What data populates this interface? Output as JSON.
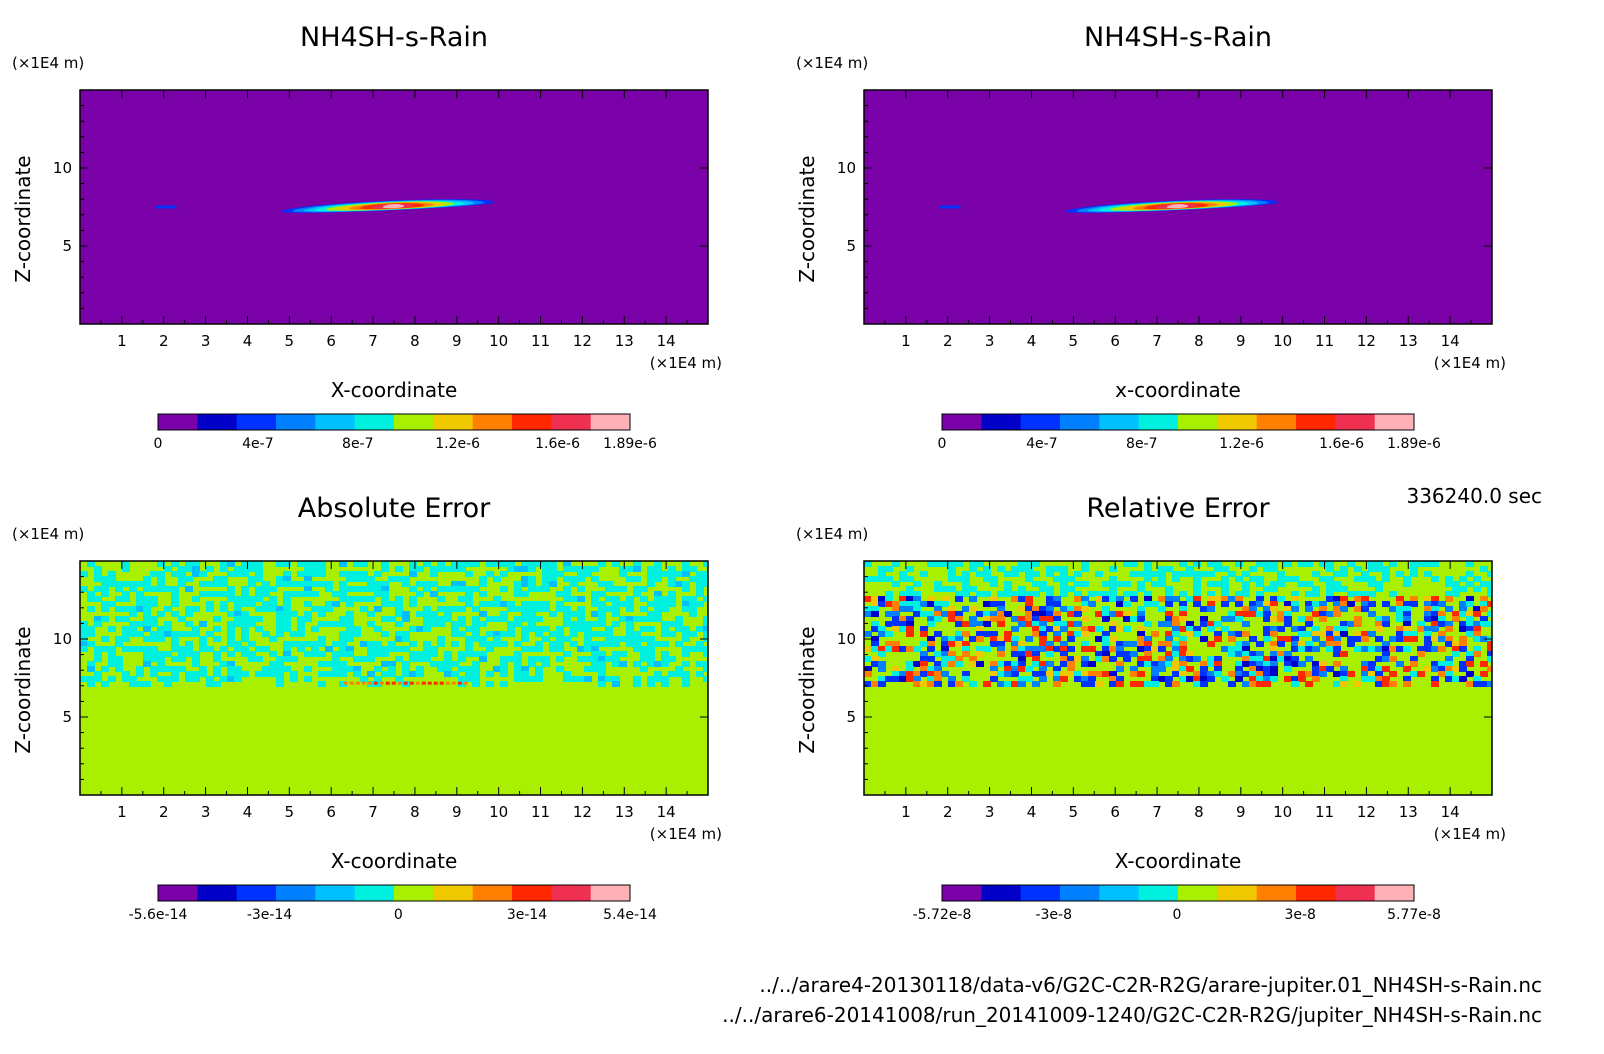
{
  "time_label": "336240.0 sec",
  "file_paths": [
    "../../arare4-20130118/data-v6/G2C-C2R-R2G/arare-jupiter.01_NH4SH-s-Rain.nc",
    "../../arare6-20141008/run_20141009-1240/G2C-C2R-R2G/jupiter_NH4SH-s-Rain.nc"
  ],
  "colors": {
    "palette": [
      "#7a00a8",
      "#0000c8",
      "#0032ff",
      "#0080ff",
      "#00c0ff",
      "#00f0e0",
      "#a8f000",
      "#f0c800",
      "#ff8000",
      "#ff2800",
      "#f03050",
      "#ffb0b8"
    ],
    "background_fill": "#7a00a8",
    "error_background_fill": "#a8f000"
  },
  "chart_data": [
    {
      "type": "heatmap",
      "title": "NH4SH-s-Rain",
      "xlabel": "X-coordinate",
      "ylabel": "Z-coordinate",
      "x_unit": "(×1E4 m)",
      "y_unit": "(×1E4 m)",
      "xlim": [
        0,
        15
      ],
      "ylim": [
        0,
        15
      ],
      "x_ticks": [
        1,
        2,
        3,
        4,
        5,
        6,
        7,
        8,
        9,
        10,
        11,
        12,
        13,
        14
      ],
      "y_ticks": [
        5,
        10
      ],
      "colorbar": {
        "min": 0,
        "max": 1.89e-06,
        "labels": [
          "0",
          "4e-7",
          "8e-7",
          "1.2e-6",
          "1.6e-6",
          "1.89e-6"
        ],
        "label_values": [
          0,
          4e-07,
          8e-07,
          1.2e-06,
          1.6e-06,
          1.89e-06
        ]
      },
      "pattern": "plume",
      "plume": {
        "x_start": 4.8,
        "x_end": 9.9,
        "z_low": 6.8,
        "z_high": 7.6,
        "peak_x": 7.5,
        "peak": 1.89e-06
      },
      "blip": {
        "x": [
          1.8,
          2.3
        ],
        "z": 7.5
      }
    },
    {
      "type": "heatmap",
      "title": "NH4SH-s-Rain",
      "xlabel": "x-coordinate",
      "ylabel": "Z-coordinate",
      "x_unit": "(×1E4 m)",
      "y_unit": "(×1E4 m)",
      "xlim": [
        0,
        15
      ],
      "ylim": [
        0,
        15
      ],
      "x_ticks": [
        1,
        2,
        3,
        4,
        5,
        6,
        7,
        8,
        9,
        10,
        11,
        12,
        13,
        14
      ],
      "y_ticks": [
        5,
        10
      ],
      "colorbar": {
        "min": 0,
        "max": 1.89e-06,
        "labels": [
          "0",
          "4e-7",
          "8e-7",
          "1.2e-6",
          "1.6e-6",
          "1.89e-6"
        ],
        "label_values": [
          0,
          4e-07,
          8e-07,
          1.2e-06,
          1.6e-06,
          1.89e-06
        ]
      },
      "pattern": "plume",
      "plume": {
        "x_start": 4.8,
        "x_end": 9.9,
        "z_low": 6.8,
        "z_high": 7.6,
        "peak_x": 7.5,
        "peak": 1.89e-06
      },
      "blip": {
        "x": [
          1.8,
          2.3
        ],
        "z": 7.5
      }
    },
    {
      "type": "heatmap",
      "title": "Absolute Error",
      "xlabel": "X-coordinate",
      "ylabel": "Z-coordinate",
      "x_unit": "(×1E4 m)",
      "y_unit": "(×1E4 m)",
      "xlim": [
        0,
        15
      ],
      "ylim": [
        0,
        15
      ],
      "x_ticks": [
        1,
        2,
        3,
        4,
        5,
        6,
        7,
        8,
        9,
        10,
        11,
        12,
        13,
        14
      ],
      "y_ticks": [
        5,
        10
      ],
      "colorbar": {
        "min": -5.6e-14,
        "max": 5.4e-14,
        "labels": [
          "-5.6e-14",
          "-3e-14",
          "0",
          "3e-14",
          "5.4e-14"
        ],
        "label_values": [
          -5.6e-14,
          -3e-14,
          0,
          3e-14,
          5.4e-14
        ]
      },
      "pattern": "noise-weak",
      "noise_z_range": [
        7.0,
        15
      ]
    },
    {
      "type": "heatmap",
      "title": "Relative Error",
      "xlabel": "X-coordinate",
      "ylabel": "Z-coordinate",
      "x_unit": "(×1E4 m)",
      "y_unit": "(×1E4 m)",
      "xlim": [
        0,
        15
      ],
      "ylim": [
        0,
        15
      ],
      "x_ticks": [
        1,
        2,
        3,
        4,
        5,
        6,
        7,
        8,
        9,
        10,
        11,
        12,
        13,
        14
      ],
      "y_ticks": [
        5,
        10
      ],
      "colorbar": {
        "min": -5.72e-08,
        "max": 5.77e-08,
        "labels": [
          "-5.72e-8",
          "-3e-8",
          "0",
          "3e-8",
          "5.77e-8"
        ],
        "label_values": [
          -5.72e-08,
          -3e-08,
          0,
          3e-08,
          5.77e-08
        ]
      },
      "pattern": "noise-strong",
      "noise_z_range": [
        7.0,
        15
      ],
      "strong_z_range": [
        7.2,
        12.8
      ]
    }
  ]
}
